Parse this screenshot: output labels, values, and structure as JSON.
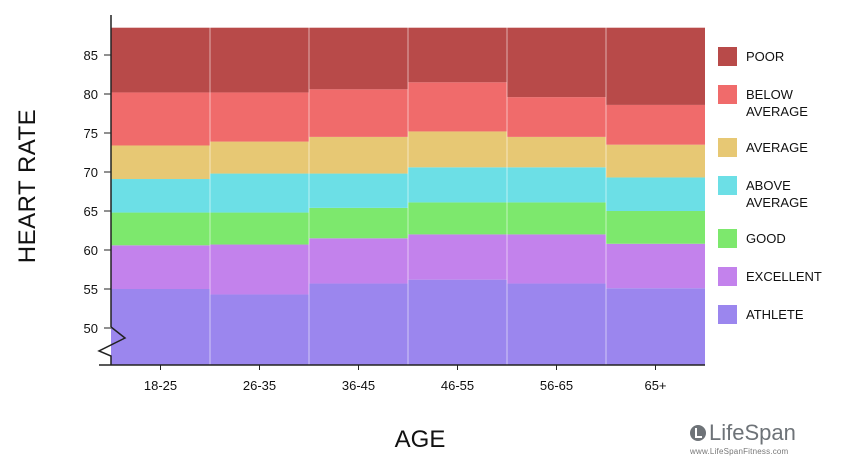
{
  "chart_data": {
    "type": "stacked-area",
    "ylabel": "HEART RATE",
    "xlabel": "AGE",
    "categories": [
      "18-25",
      "26-35",
      "36-45",
      "46-55",
      "56-65",
      "65+"
    ],
    "yticks": [
      50,
      55,
      60,
      65,
      70,
      75,
      80,
      85
    ],
    "ylim": [
      45,
      88.5
    ],
    "axis_break": true,
    "bands": [
      {
        "name": "ATHLETE",
        "color": "#9b86ee",
        "lower": [
          45,
          45,
          45,
          45,
          45,
          45
        ],
        "upper": [
          55,
          54.3,
          55.7,
          56.2,
          55.7,
          55.1
        ]
      },
      {
        "name": "EXCELLENT",
        "color": "#c382ec",
        "lower": [
          55,
          54.3,
          55.7,
          56.2,
          55.7,
          55.1
        ],
        "upper": [
          60.6,
          60.7,
          61.5,
          62.0,
          62.0,
          60.8
        ]
      },
      {
        "name": "GOOD",
        "color": "#7de86d",
        "lower": [
          60.6,
          60.7,
          61.5,
          62.0,
          62.0,
          60.8
        ],
        "upper": [
          64.8,
          64.8,
          65.4,
          66.1,
          66.1,
          65.0
        ]
      },
      {
        "name": "ABOVE\nAVERAGE",
        "color": "#6cdfe6",
        "lower": [
          64.8,
          64.8,
          65.4,
          66.1,
          66.1,
          65.0
        ],
        "upper": [
          69.1,
          69.8,
          69.8,
          70.6,
          70.6,
          69.3
        ]
      },
      {
        "name": "AVERAGE",
        "color": "#e7c874",
        "lower": [
          69.1,
          69.8,
          69.8,
          70.6,
          70.6,
          69.3
        ],
        "upper": [
          73.4,
          73.9,
          74.5,
          75.2,
          74.5,
          73.5
        ]
      },
      {
        "name": "BELOW\nAVERAGE",
        "color": "#f06b6b",
        "lower": [
          73.4,
          73.9,
          74.5,
          75.2,
          74.5,
          73.5
        ],
        "upper": [
          80.2,
          80.2,
          80.6,
          81.5,
          79.6,
          78.6
        ]
      },
      {
        "name": "POOR",
        "color": "#b84a49",
        "lower": [
          80.2,
          80.2,
          80.6,
          81.5,
          79.6,
          78.6
        ],
        "upper": [
          88.5,
          88.5,
          88.5,
          88.5,
          88.5,
          88.5
        ]
      }
    ],
    "legend_position": "right",
    "grid": false
  },
  "brand": {
    "name": "LifeSpan",
    "url": "www.LifeSpanFitness.com"
  }
}
